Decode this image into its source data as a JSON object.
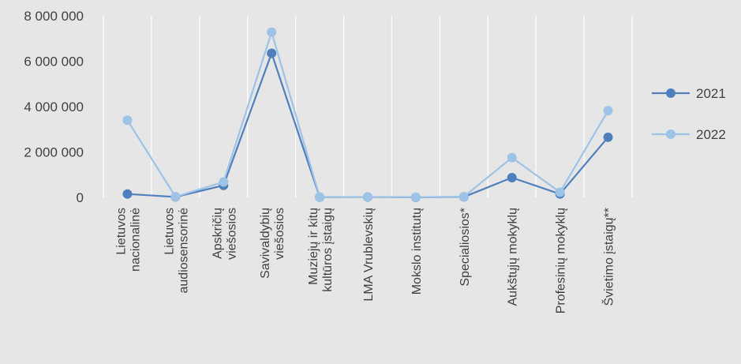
{
  "chart_data": {
    "type": "line",
    "categories": [
      [
        "Lietuvos",
        "nacionalinė"
      ],
      [
        "Lietuvos",
        "audiosensorinė"
      ],
      [
        "Apskričių",
        "viešosios"
      ],
      [
        "Savivaldybių",
        "viešosios"
      ],
      [
        "Muziejų ir kitų",
        "kultūros įstaigų"
      ],
      [
        "LMA Vrublevskių"
      ],
      [
        "Mokslo institutų"
      ],
      [
        "Specialiosios*"
      ],
      [
        "Aukštųjų mokyklų"
      ],
      [
        "Profesinių mokyklų"
      ],
      [
        "Švietimo įstaigų**"
      ]
    ],
    "yticks": [
      "0",
      "2 000 000",
      "4 000 000",
      "6 000 000",
      "8 000 000"
    ],
    "ylim": [
      0,
      8000000
    ],
    "grid": "vertical",
    "legend_position": "right",
    "series": [
      {
        "name": "2021",
        "color": "#4e80bd",
        "values": [
          150000,
          20000,
          530000,
          6350000,
          10000,
          15000,
          5000,
          20000,
          870000,
          150000,
          2650000
        ]
      },
      {
        "name": "2022",
        "color": "#9dc3e6",
        "values": [
          3400000,
          30000,
          680000,
          7280000,
          15000,
          20000,
          8000,
          30000,
          1750000,
          230000,
          3820000
        ]
      }
    ]
  }
}
